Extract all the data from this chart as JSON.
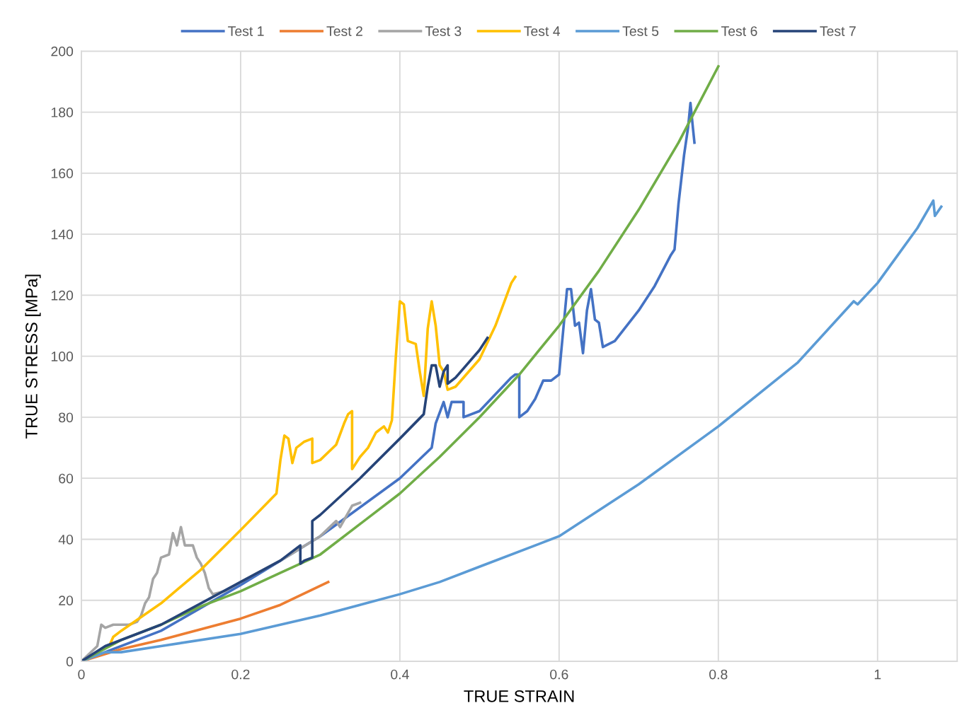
{
  "chart_data": {
    "type": "line",
    "xlabel": "TRUE STRAIN",
    "ylabel": "TRUE STRESS [MPa]",
    "xlim": [
      0,
      1.1
    ],
    "xticks": [
      0,
      0.2,
      0.4,
      0.6,
      0.8,
      1
    ],
    "ylim": [
      0,
      200
    ],
    "yticks": [
      0,
      20,
      40,
      60,
      80,
      100,
      120,
      140,
      160,
      180,
      200
    ],
    "grid": true,
    "legend": "top",
    "marker": "none",
    "line_style": "solid",
    "series": [
      {
        "name": "Test 1",
        "color": "#4472c4",
        "x": [
          0,
          0.1,
          0.2,
          0.3,
          0.4,
          0.44,
          0.445,
          0.455,
          0.46,
          0.465,
          0.48,
          0.48,
          0.5,
          0.54,
          0.545,
          0.55,
          0.55,
          0.56,
          0.57,
          0.58,
          0.59,
          0.6,
          0.605,
          0.61,
          0.615,
          0.62,
          0.625,
          0.63,
          0.635,
          0.64,
          0.645,
          0.65,
          0.655,
          0.67,
          0.7,
          0.72,
          0.74,
          0.745,
          0.75,
          0.757,
          0.762,
          0.765,
          0.768,
          0.77
        ],
        "values": [
          0,
          10,
          25,
          41,
          60,
          70,
          78,
          85,
          80,
          85,
          85,
          80,
          82,
          93,
          94,
          94,
          80,
          82,
          86,
          92,
          92,
          94,
          108,
          122,
          122,
          110,
          111,
          101,
          115,
          122,
          112,
          111,
          103,
          105,
          115,
          123,
          133,
          135,
          150,
          166,
          175,
          183,
          175,
          170
        ]
      },
      {
        "name": "Test 2",
        "color": "#ed7d31",
        "x": [
          0,
          0.05,
          0.1,
          0.15,
          0.2,
          0.25,
          0.31
        ],
        "values": [
          0,
          4,
          7,
          10.5,
          14,
          18.5,
          26
        ]
      },
      {
        "name": "Test 3",
        "color": "#a5a5a5",
        "x": [
          0,
          0.02,
          0.025,
          0.03,
          0.04,
          0.06,
          0.07,
          0.075,
          0.08,
          0.085,
          0.09,
          0.095,
          0.1,
          0.11,
          0.115,
          0.12,
          0.125,
          0.13,
          0.14,
          0.145,
          0.15,
          0.155,
          0.16,
          0.165,
          0.18,
          0.2,
          0.25,
          0.3,
          0.32,
          0.325,
          0.34,
          0.35
        ],
        "values": [
          0,
          5,
          12,
          11,
          12,
          12,
          13,
          15,
          19,
          21,
          27,
          29,
          34,
          35,
          42,
          38,
          44,
          38,
          38,
          34,
          32,
          29,
          24,
          22,
          23,
          26,
          33,
          41,
          46,
          44,
          51,
          52
        ]
      },
      {
        "name": "Test 4",
        "color": "#ffc000",
        "x": [
          0.035,
          0.04,
          0.05,
          0.1,
          0.15,
          0.2,
          0.245,
          0.25,
          0.255,
          0.26,
          0.265,
          0.27,
          0.28,
          0.29,
          0.29,
          0.3,
          0.32,
          0.33,
          0.335,
          0.34,
          0.34,
          0.35,
          0.36,
          0.37,
          0.38,
          0.385,
          0.39,
          0.395,
          0.4,
          0.405,
          0.41,
          0.42,
          0.425,
          0.43,
          0.435,
          0.44,
          0.445,
          0.45,
          0.455,
          0.46,
          0.47,
          0.5,
          0.52,
          0.54,
          0.545
        ],
        "values": [
          5,
          8,
          10,
          19,
          30,
          43,
          55,
          66,
          74,
          73,
          65,
          70,
          72,
          73,
          65,
          66,
          71,
          78,
          81,
          82,
          63,
          67,
          70,
          75,
          77,
          75,
          79,
          100,
          118,
          117,
          105,
          104,
          95,
          87,
          109,
          118,
          110,
          97,
          95,
          89,
          90,
          99,
          110,
          124,
          126
        ]
      },
      {
        "name": "Test 5",
        "color": "#5b9bd5",
        "x": [
          0,
          0.03,
          0.05,
          0.1,
          0.2,
          0.3,
          0.4,
          0.45,
          0.5,
          0.6,
          0.7,
          0.8,
          0.9,
          0.97,
          0.975,
          1.0,
          1.05,
          1.07,
          1.072,
          1.08
        ],
        "values": [
          0,
          3,
          3,
          5,
          9,
          15,
          22,
          26,
          31,
          41,
          58,
          77,
          98,
          118,
          117,
          124,
          142,
          151,
          146,
          149
        ]
      },
      {
        "name": "Test 6",
        "color": "#70ad47",
        "x": [
          0,
          0.05,
          0.1,
          0.15,
          0.2,
          0.25,
          0.3,
          0.35,
          0.4,
          0.45,
          0.5,
          0.55,
          0.6,
          0.65,
          0.7,
          0.75,
          0.8
        ],
        "values": [
          0,
          7,
          12,
          18,
          23,
          29,
          35,
          45,
          55,
          67,
          80,
          94,
          110,
          128,
          148,
          170,
          195
        ]
      },
      {
        "name": "Test 7",
        "color": "#264478",
        "x": [
          0,
          0.03,
          0.1,
          0.15,
          0.2,
          0.25,
          0.27,
          0.275,
          0.275,
          0.28,
          0.29,
          0.29,
          0.3,
          0.35,
          0.4,
          0.43,
          0.435,
          0.44,
          0.445,
          0.45,
          0.455,
          0.46,
          0.46,
          0.47,
          0.5,
          0.51
        ],
        "values": [
          0,
          5,
          12,
          19,
          26,
          33,
          37,
          38,
          32,
          33,
          34,
          46,
          48,
          60,
          73,
          81,
          90,
          97,
          97,
          90,
          95,
          97,
          91,
          93,
          102,
          106
        ]
      }
    ]
  }
}
